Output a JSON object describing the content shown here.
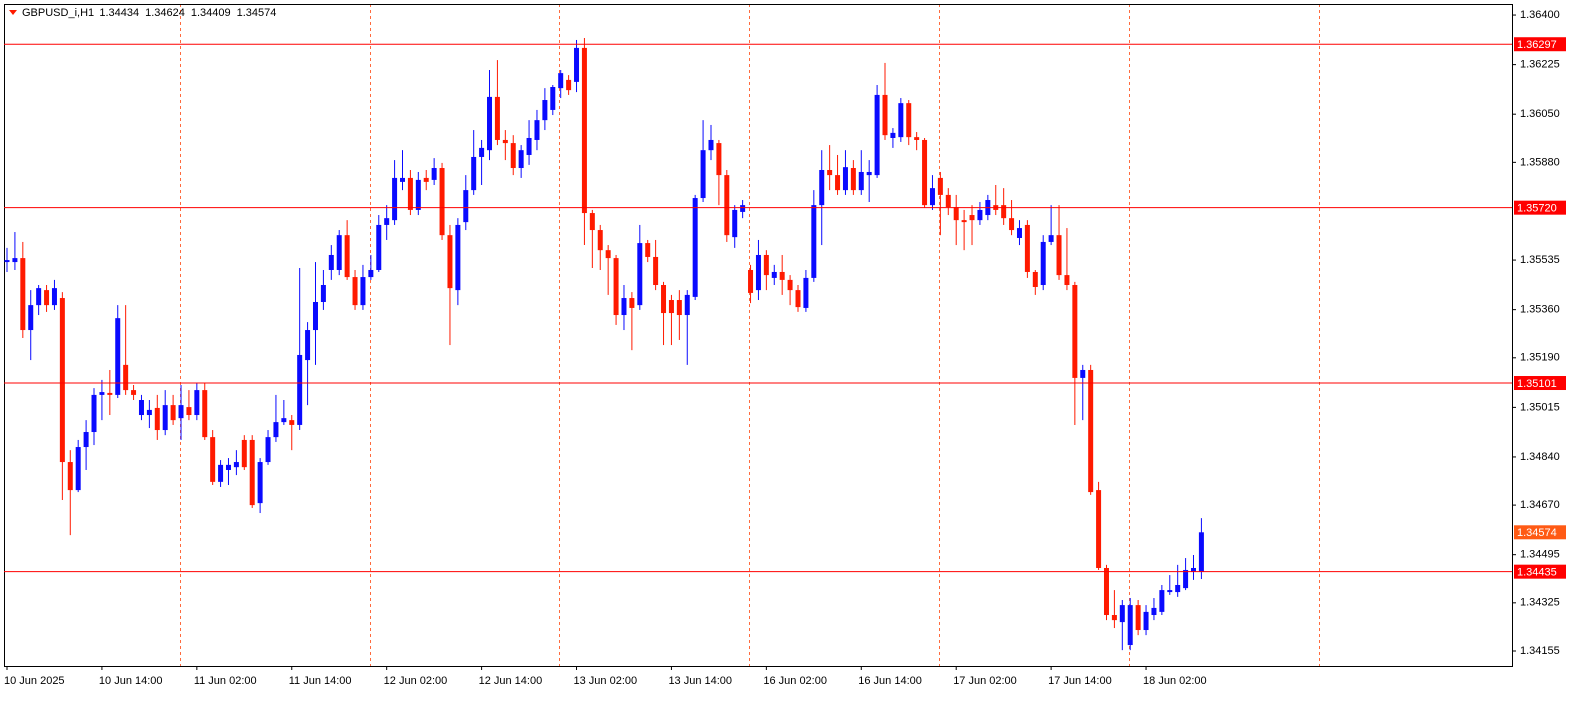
{
  "chart_data": {
    "type": "candlestick",
    "title": "GBPUSD_i,H1",
    "x": [
      "10 Jun 2025",
      null,
      null,
      null,
      null,
      null,
      null,
      null,
      null,
      null,
      null,
      null,
      "10 Jun 14:00",
      null,
      null,
      null,
      null,
      null,
      null,
      null,
      null,
      null,
      null,
      null,
      "11 Jun 02:00",
      null,
      null,
      null,
      null,
      null,
      null,
      null,
      null,
      null,
      null,
      null,
      "11 Jun 14:00",
      null,
      null,
      null,
      null,
      null,
      null,
      null,
      null,
      null,
      null,
      null,
      "12 Jun 02:00",
      null,
      null,
      null,
      null,
      null,
      null,
      null,
      null,
      null,
      null,
      null,
      "12 Jun 14:00",
      null,
      null,
      null,
      null,
      null,
      null,
      null,
      null,
      null,
      null,
      null,
      "13 Jun 02:00",
      null,
      null,
      null,
      null,
      null,
      null,
      null,
      null,
      null,
      null,
      null,
      "13 Jun 14:00",
      null,
      null,
      null,
      null,
      null,
      null,
      null,
      null,
      null,
      null,
      null,
      "16 Jun 02:00",
      null,
      null,
      null,
      null,
      null,
      null,
      null,
      null,
      null,
      null,
      null,
      "16 Jun 14:00",
      null,
      null,
      null,
      null,
      null,
      null,
      null,
      null,
      null,
      null,
      null,
      "17 Jun 02:00",
      null,
      null,
      null,
      null,
      null,
      null,
      null,
      null,
      null,
      null,
      null,
      "17 Jun 14:00",
      null,
      null,
      null,
      null,
      null,
      null,
      null,
      null,
      null,
      null,
      null,
      "18 Jun 02:00",
      null,
      null,
      null,
      null,
      null,
      null,
      null
    ],
    "open": [
      1.35528,
      1.35528,
      1.35542,
      1.35288,
      1.35376,
      1.35429,
      1.35376,
      1.35401,
      1.34822,
      1.34723,
      1.34875,
      1.34928,
      1.35059,
      1.35066,
      1.35059,
      1.35165,
      1.35076,
      1.34988,
      1.34988,
      1.35013,
      1.34935,
      1.35023,
      1.34977,
      1.35016,
      1.34988,
      1.35076,
      1.3491,
      1.34752,
      1.34794,
      1.34804,
      1.349,
      1.349,
      1.34677,
      1.34822,
      1.3491,
      1.34963,
      1.3497,
      1.34953,
      1.35182,
      1.35288,
      1.35387,
      1.355,
      1.355,
      1.35623,
      1.35475,
      1.35376,
      1.35475,
      1.355,
      1.35659,
      1.35676,
      1.35811,
      1.35825,
      1.35712,
      1.35825,
      1.35818,
      1.3586,
      1.35623,
      1.35429,
      1.35669,
      1.35782,
      1.35899,
      1.35923,
      1.36111,
      1.35959,
      1.35948,
      1.3586,
      1.35906,
      1.35959,
      1.36029,
      1.36065,
      1.36142,
      1.36171,
      1.36164,
      1.36284,
      1.35701,
      1.35641,
      1.3557,
      1.35542,
      1.35341,
      1.35401,
      1.35376,
      1.35595,
      1.35546,
      1.35447,
      1.35394,
      1.35394,
      1.35341,
      1.35405,
      1.35754,
      1.35923,
      1.35948,
      1.35835,
      1.35616,
      1.35705,
      1.355,
      1.35429,
      1.35553,
      1.35472,
      1.35493,
      1.35465,
      1.35429,
      1.35366,
      1.35472,
      1.35729,
      1.35853,
      1.35835,
      1.35782,
      1.3586,
      1.35782,
      1.35835,
      1.35835,
      1.36118,
      1.35966,
      1.35969,
      1.36089,
      1.35969,
      1.35959,
      1.35729,
      1.35825,
      1.35765,
      1.35722,
      1.35676,
      1.35694,
      1.35676,
      1.35694,
      1.35729,
      1.35729,
      1.35683,
      1.35613,
      1.35659,
      1.35493,
      1.35447,
      1.35599,
      1.35623,
      1.35482,
      1.35447,
      1.35119,
      1.35147,
      1.34723,
      1.34448,
      1.34282,
      1.34257,
      1.34176,
      1.34317,
      1.34229,
      1.34282,
      1.34293,
      1.34363,
      1.34363,
      1.34377,
      1.34434,
      1.34434
    ],
    "high": [
      1.35578,
      1.35634,
      1.35599,
      1.35429,
      1.35447,
      1.35447,
      1.35465,
      1.35422,
      1.34864,
      1.349,
      1.3497,
      1.35083,
      1.35112,
      1.35147,
      1.35376,
      1.35376,
      1.35094,
      1.35059,
      1.35041,
      1.35059,
      1.35076,
      1.35059,
      1.35094,
      1.35076,
      1.35101,
      1.35101,
      1.34935,
      1.34829,
      1.34836,
      1.34864,
      1.34917,
      1.34917,
      1.34836,
      1.34935,
      1.35059,
      1.35041,
      1.34988,
      1.35507,
      1.35316,
      1.35528,
      1.355,
      1.35588,
      1.35641,
      1.35676,
      1.355,
      1.35518,
      1.35553,
      1.35694,
      1.35729,
      1.35888,
      1.35923,
      1.35853,
      1.35846,
      1.35853,
      1.35895,
      1.35878,
      1.35659,
      1.35683,
      1.35835,
      1.35994,
      1.35959,
      1.36206,
      1.36241,
      1.35994,
      1.35976,
      1.35941,
      1.36029,
      1.36065,
      1.36142,
      1.36153,
      1.36206,
      1.36188,
      1.36312,
      1.36319,
      1.35712,
      1.35659,
      1.35588,
      1.35553,
      1.35447,
      1.35422,
      1.35659,
      1.35606,
      1.35606,
      1.35458,
      1.35412,
      1.35429,
      1.35429,
      1.35765,
      1.36029,
      1.36012,
      1.35959,
      1.35853,
      1.35729,
      1.35747,
      1.35518,
      1.35606,
      1.3557,
      1.35518,
      1.35553,
      1.35482,
      1.35447,
      1.355,
      1.35782,
      1.35923,
      1.35941,
      1.35906,
      1.35923,
      1.35888,
      1.35923,
      1.35888,
      1.36153,
      1.36231,
      1.36001,
      1.36107,
      1.361,
      1.35987,
      1.35966,
      1.35835,
      1.35846,
      1.35789,
      1.35765,
      1.35712,
      1.35729,
      1.3574,
      1.35765,
      1.358,
      1.35789,
      1.35747,
      1.35676,
      1.35676,
      1.355,
      1.35623,
      1.35729,
      1.35729,
      1.35648,
      1.35458,
      1.35165,
      1.35165,
      1.34752,
      1.34459,
      1.3437,
      1.34335,
      1.34342,
      1.34335,
      1.34317,
      1.34342,
      1.34388,
      1.34423,
      1.34459,
      1.34483,
      1.34494,
      1.34624
    ],
    "low": [
      1.35493,
      1.355,
      1.3526,
      1.35182,
      1.35341,
      1.35352,
      1.35359,
      1.34688,
      1.34564,
      1.34716,
      1.34794,
      1.34882,
      1.3497,
      1.34988,
      1.35048,
      1.35059,
      1.35041,
      1.3497,
      1.34942,
      1.349,
      1.34917,
      1.34953,
      1.349,
      1.3497,
      1.3497,
      1.349,
      1.34741,
      1.34734,
      1.34741,
      1.34776,
      1.34794,
      1.3466,
      1.34642,
      1.34812,
      1.34893,
      1.34953,
      1.34864,
      1.34935,
      1.35023,
      1.35165,
      1.35359,
      1.35465,
      1.35482,
      1.35465,
      1.35359,
      1.35359,
      1.35465,
      1.35493,
      1.35606,
      1.35659,
      1.35782,
      1.35694,
      1.35694,
      1.35782,
      1.358,
      1.35606,
      1.35235,
      1.35376,
      1.35641,
      1.35765,
      1.358,
      1.35888,
      1.35941,
      1.35888,
      1.35835,
      1.35825,
      1.35871,
      1.35923,
      1.35994,
      1.36047,
      1.36107,
      1.36118,
      1.36128,
      1.35588,
      1.35507,
      1.355,
      1.35412,
      1.35306,
      1.35288,
      1.35217,
      1.35359,
      1.35528,
      1.35429,
      1.35235,
      1.35235,
      1.35253,
      1.35165,
      1.35394,
      1.3574,
      1.35888,
      1.35729,
      1.35599,
      1.35578,
      1.35683,
      1.35383,
      1.35394,
      1.35429,
      1.35447,
      1.35412,
      1.35376,
      1.35352,
      1.35352,
      1.35458,
      1.35588,
      1.35782,
      1.35765,
      1.35765,
      1.35765,
      1.35765,
      1.3574,
      1.35825,
      1.35959,
      1.35931,
      1.35952,
      1.35941,
      1.35923,
      1.35719,
      1.35712,
      1.35623,
      1.35694,
      1.35588,
      1.3557,
      1.35588,
      1.35659,
      1.35676,
      1.35694,
      1.35659,
      1.35623,
      1.35588,
      1.35472,
      1.35412,
      1.35429,
      1.35588,
      1.35465,
      1.35429,
      1.34953,
      1.3497,
      1.34706,
      1.34441,
      1.34264,
      1.34236,
      1.34158,
      1.34158,
      1.34211,
      1.34211,
      1.34264,
      1.34282,
      1.34353,
      1.34346,
      1.3437,
      1.34406,
      1.34409
    ],
    "close": [
      1.35535,
      1.35542,
      1.35288,
      1.35376,
      1.35436,
      1.35376,
      1.35436,
      1.34822,
      1.34723,
      1.34875,
      1.34928,
      1.35059,
      1.35069,
      1.35059,
      1.3533,
      1.35076,
      1.35059,
      1.35041,
      1.35006,
      1.34935,
      1.35023,
      1.3497,
      1.35023,
      1.34988,
      1.35076,
      1.3491,
      1.34752,
      1.34812,
      1.34812,
      1.34822,
      1.34804,
      1.3467,
      1.34822,
      1.3491,
      1.34963,
      1.34977,
      1.34953,
      1.352,
      1.35288,
      1.35387,
      1.35447,
      1.35553,
      1.35623,
      1.35475,
      1.35376,
      1.35475,
      1.355,
      1.35659,
      1.35683,
      1.35825,
      1.35825,
      1.35712,
      1.35818,
      1.35811,
      1.3586,
      1.35623,
      1.35436,
      1.35659,
      1.35782,
      1.35899,
      1.35931,
      1.36111,
      1.35959,
      1.35948,
      1.3586,
      1.35923,
      1.35966,
      1.36029,
      1.361,
      1.36146,
      1.36195,
      1.36135,
      1.36284,
      1.35701,
      1.35641,
      1.3557,
      1.35542,
      1.35341,
      1.35401,
      1.35366,
      1.35595,
      1.35546,
      1.35447,
      1.35348,
      1.35348,
      1.35341,
      1.35412,
      1.35754,
      1.35923,
      1.35959,
      1.35835,
      1.35623,
      1.35712,
      1.35729,
      1.35419,
      1.35553,
      1.35482,
      1.35493,
      1.35465,
      1.35429,
      1.35369,
      1.35472,
      1.35729,
      1.35853,
      1.35835,
      1.35782,
      1.35863,
      1.35782,
      1.35846,
      1.35846,
      1.36118,
      1.35976,
      1.35984,
      1.36089,
      1.35969,
      1.35959,
      1.35729,
      1.35789,
      1.35765,
      1.35722,
      1.35676,
      1.35669,
      1.35676,
      1.35712,
      1.35747,
      1.35712,
      1.35683,
      1.35641,
      1.35648,
      1.35493,
      1.3544,
      1.35599,
      1.35623,
      1.35482,
      1.35447,
      1.35119,
      1.35147,
      1.34716,
      1.34448,
      1.34282,
      1.34264,
      1.34317,
      1.34317,
      1.34229,
      1.34293,
      1.34307,
      1.3437,
      1.3437,
      1.34388,
      1.34441,
      1.34448,
      1.34574
    ],
    "up_color": "#0a0aff",
    "down_color": "#ff1a00",
    "ylim": [
      1.34102,
      1.36439
    ],
    "yticks": [
      {
        "value": 1.364,
        "label": "1.36400"
      },
      1.36225,
      {
        "value": 1.3605,
        "label": "1.36050"
      },
      {
        "value": 1.3588,
        "label": "1.35880"
      },
      1.35535,
      {
        "value": 1.3536,
        "label": "1.35360"
      },
      {
        "value": 1.3519,
        "label": "1.35190"
      },
      1.35015,
      {
        "value": 1.3484,
        "label": "1.34840"
      },
      {
        "value": 1.3467,
        "label": "1.34670"
      },
      1.34495,
      1.34325,
      1.34155
    ],
    "levels": [
      1.36297,
      {
        "value": 1.3572,
        "label": "1.35720"
      },
      1.35101,
      1.34435
    ],
    "level_color": "#ff0000",
    "price_label_color": "#ff5a14"
  }
}
